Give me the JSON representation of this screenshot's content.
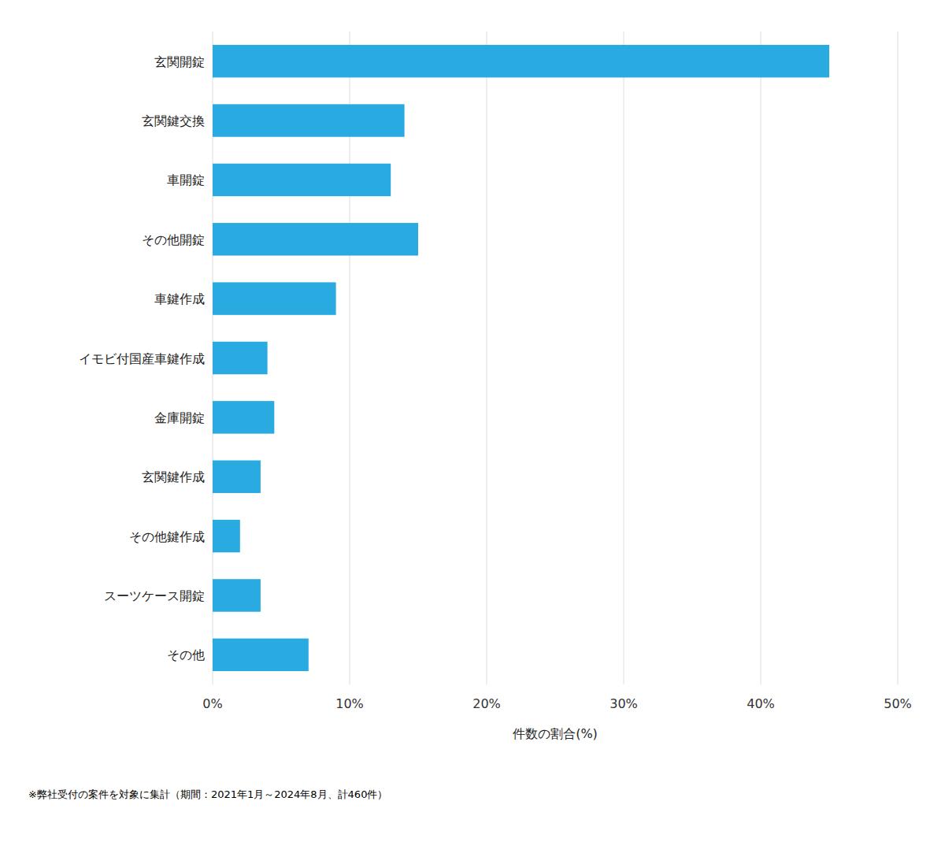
{
  "chart_data": {
    "type": "bar",
    "orientation": "horizontal",
    "categories": [
      "玄関開錠",
      "玄関鍵交換",
      "車開錠",
      "その他開錠",
      "車鍵作成",
      "イモビ付国産車鍵作成",
      "金庫開錠",
      "玄関鍵作成",
      "その他鍵作成",
      "スーツケース開錠",
      "その他"
    ],
    "values": [
      45.0,
      14.0,
      13.0,
      15.0,
      9.0,
      4.0,
      4.5,
      3.5,
      2.0,
      3.5,
      7.0
    ],
    "color": "#29ABE2",
    "xlabel": "件数の割合(%)",
    "xlim": [
      0,
      50
    ],
    "xticks": [
      {
        "value": 0,
        "label": "0%"
      },
      {
        "value": 10,
        "label": "10%"
      },
      {
        "value": 20,
        "label": "20%"
      },
      {
        "value": 30,
        "label": "30%"
      },
      {
        "value": 40,
        "label": "40%"
      },
      {
        "value": 50,
        "label": "50%"
      }
    ],
    "grid": true,
    "annotations": [
      "※弊社受付の案件を対象に集計（期間：2021年1月～2024年8月、計460件）"
    ]
  }
}
